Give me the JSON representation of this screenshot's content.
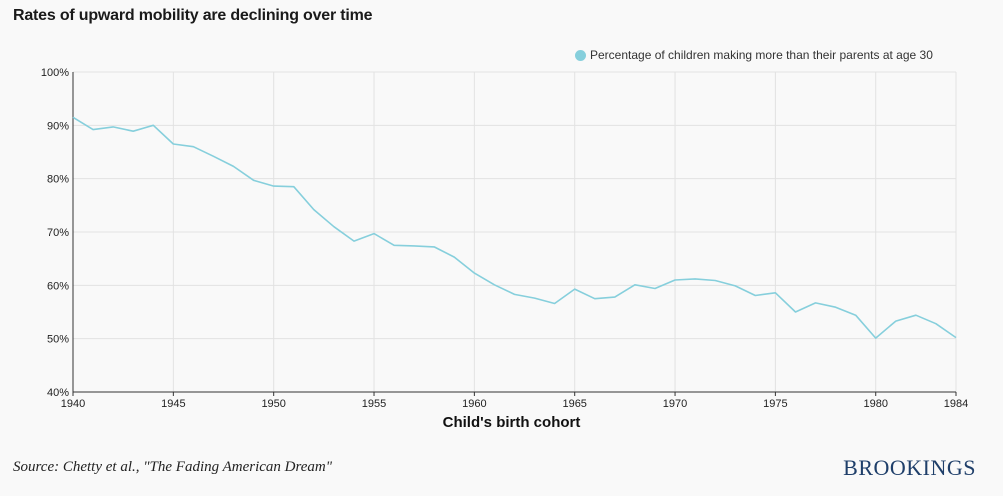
{
  "page": {
    "source": "Source: Chetty et al., \"The Fading American Dream\"",
    "brand": "BROOKINGS"
  },
  "colors": {
    "series": "#86cfdc",
    "grid": "#e2e2e2",
    "axis": "#333333"
  },
  "chart_data": {
    "type": "line",
    "title": "Rates of upward mobility are declining over time",
    "xlabel": "Child's birth cohort",
    "ylabel": "",
    "xlim": [
      1940,
      1984
    ],
    "ylim": [
      40,
      100
    ],
    "xticks": [
      1940,
      1945,
      1950,
      1955,
      1960,
      1965,
      1970,
      1975,
      1980,
      1984
    ],
    "xtick_labels": [
      "1940",
      "1945",
      "1950",
      "1955",
      "1960",
      "1965",
      "1970",
      "1975",
      "1980",
      "1984"
    ],
    "yticks": [
      40,
      50,
      60,
      70,
      80,
      90,
      100
    ],
    "ytick_labels": [
      "40%",
      "50%",
      "60%",
      "70%",
      "80%",
      "90%",
      "100%"
    ],
    "grid": true,
    "legend_position": "top-right",
    "series": [
      {
        "name": "Percentage of children making more than their parents at age 30",
        "x": [
          1940,
          1941,
          1942,
          1943,
          1944,
          1945,
          1946,
          1947,
          1948,
          1949,
          1950,
          1951,
          1952,
          1953,
          1954,
          1955,
          1956,
          1957,
          1958,
          1959,
          1960,
          1961,
          1962,
          1963,
          1964,
          1965,
          1966,
          1967,
          1968,
          1969,
          1970,
          1971,
          1972,
          1973,
          1974,
          1975,
          1976,
          1977,
          1978,
          1979,
          1980,
          1981,
          1982,
          1983,
          1984
        ],
        "values": [
          91.5,
          89.2,
          89.7,
          88.9,
          90.0,
          86.5,
          86.0,
          84.2,
          82.3,
          79.7,
          78.6,
          78.5,
          74.2,
          71.0,
          68.3,
          69.7,
          67.5,
          67.4,
          67.2,
          65.3,
          62.3,
          60.1,
          58.3,
          57.6,
          56.6,
          59.3,
          57.5,
          57.8,
          60.1,
          59.4,
          61.0,
          61.2,
          60.9,
          59.9,
          58.1,
          58.6,
          55.0,
          56.7,
          55.9,
          54.4,
          50.1,
          53.3,
          54.4,
          52.8,
          50.2
        ]
      }
    ]
  }
}
